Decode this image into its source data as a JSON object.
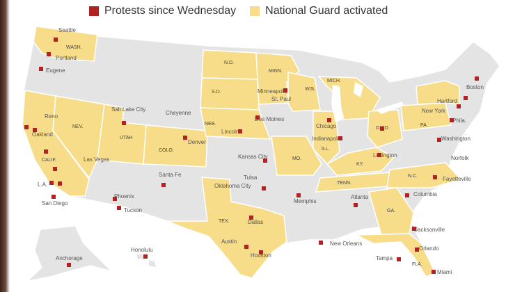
{
  "legend": {
    "protests": {
      "label": "Protests since Wednesday",
      "color": "#b22222"
    },
    "guard": {
      "label": "National Guard activated",
      "color": "#f7dd8a"
    }
  },
  "colors": {
    "land": "#e4e4e4",
    "border": "#ffffff",
    "water": "#ffffff",
    "guard": "#f7dd8a",
    "protest": "#b22222"
  },
  "city_labels": [
    "Seattle",
    "Portland",
    "Eugene",
    "Reno",
    "Oakland",
    "Salt Lake City",
    "Cheyenne",
    "Denver",
    "Las Vegas",
    "L.A.",
    "San Diego",
    "Santa Fe",
    "Phoenix",
    "Tucson",
    "Minneapolis",
    "St. Paul",
    "Des Moines",
    "Lincoln",
    "Kansas City",
    "Oklahoma City",
    "Tulsa",
    "Dallas",
    "Austin",
    "Houston",
    "Memphis",
    "New Orleans",
    "Atlanta",
    "Columbia",
    "Jacksonville",
    "Orlando",
    "Tampa",
    "Miami",
    "Chicago",
    "Indianapolis",
    "Lexington",
    "Fayetteville",
    "Norfolk",
    "Washington",
    "Phila.",
    "New York",
    "Hartford",
    "Boston",
    "Anchorage",
    "Honolulu"
  ],
  "state_labels": [
    "WASH.",
    "CALIF.",
    "NEV.",
    "UTAH",
    "COLO.",
    "N.D.",
    "S.D.",
    "NEB.",
    "MINN.",
    "WIS.",
    "MICH.",
    "ILL.",
    "MO.",
    "TEX.",
    "OHIO",
    "PA.",
    "KY.",
    "TENN.",
    "N.C.",
    "GA.",
    "FLA."
  ]
}
